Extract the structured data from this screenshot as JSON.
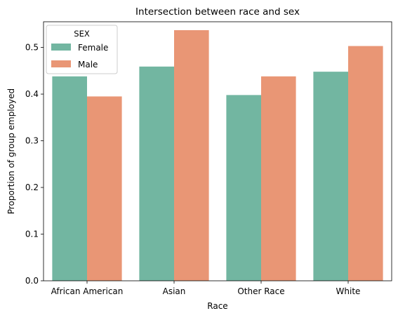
{
  "chart_data": {
    "type": "bar",
    "title": "Intersection between race and sex",
    "xlabel": "Race",
    "ylabel": "Proportion of group employed",
    "categories": [
      "African American",
      "Asian",
      "Other Race",
      "White"
    ],
    "series": [
      {
        "name": "Female",
        "color": "#72b6a1",
        "values": [
          0.438,
          0.459,
          0.398,
          0.448
        ]
      },
      {
        "name": "Male",
        "color": "#e99675",
        "values": [
          0.395,
          0.537,
          0.438,
          0.503
        ]
      }
    ],
    "ylim": [
      0,
      0.555
    ],
    "yticks": [
      0.0,
      0.1,
      0.2,
      0.3,
      0.4,
      0.5
    ],
    "ytick_labels": [
      "0.0",
      "0.1",
      "0.2",
      "0.3",
      "0.4",
      "0.5"
    ],
    "grid": false,
    "legend": {
      "title": "SEX",
      "position": "top-left"
    }
  }
}
